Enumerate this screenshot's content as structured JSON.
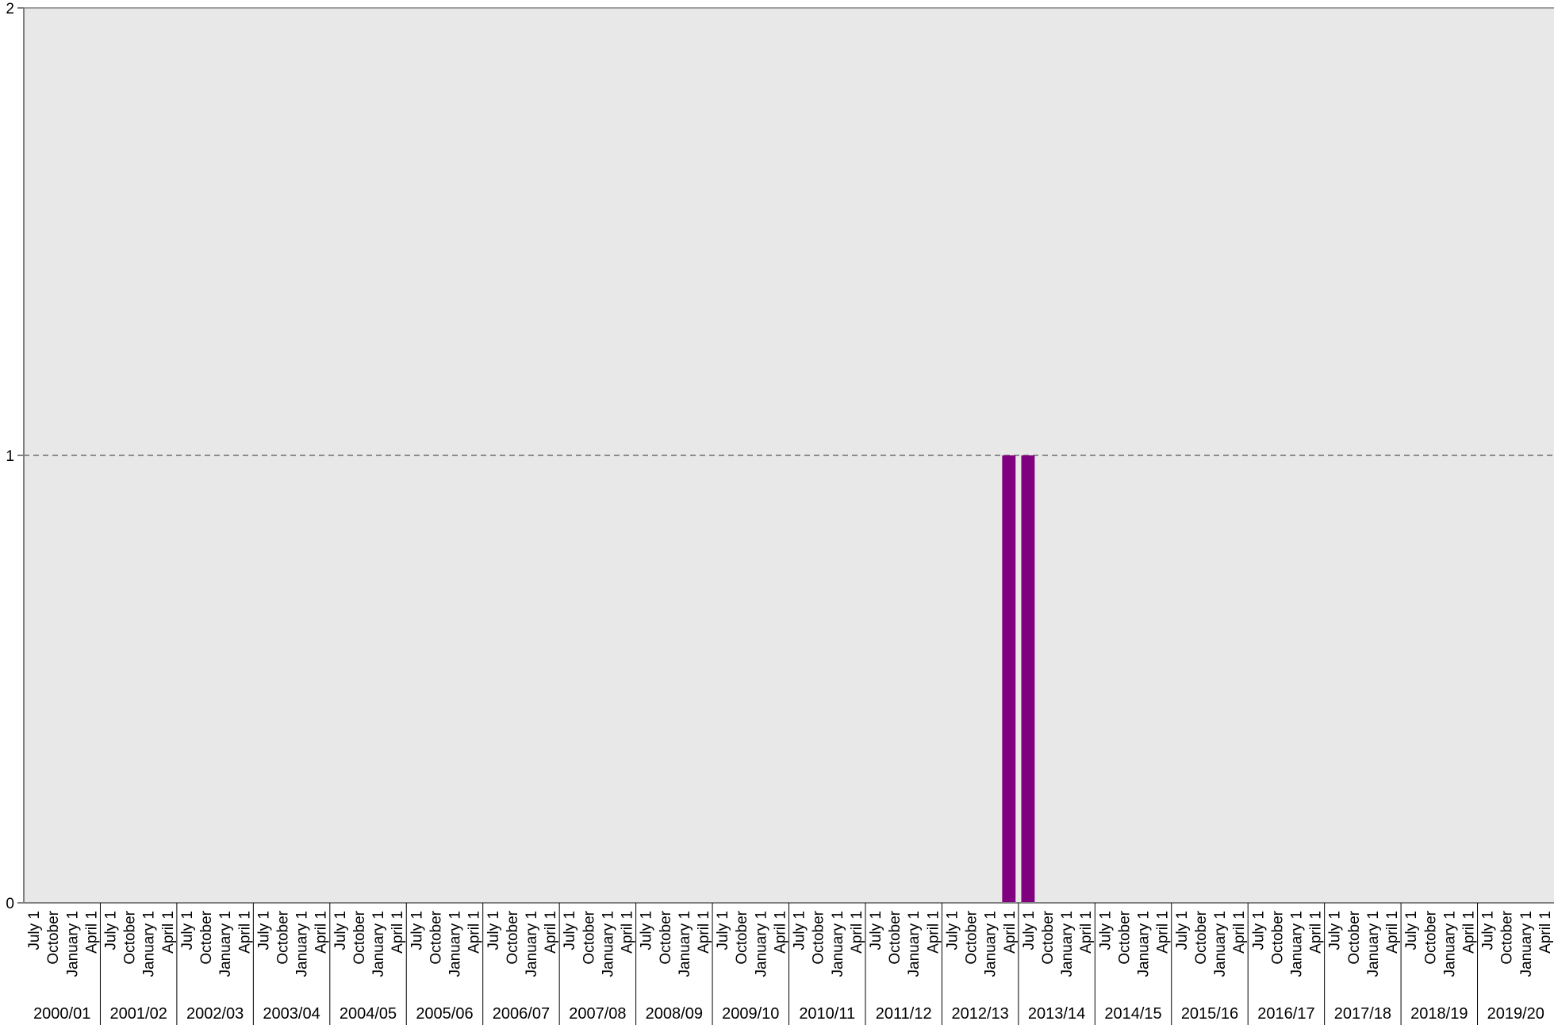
{
  "chart_data": {
    "type": "bar",
    "title": "",
    "xlabel": "",
    "ylabel": "",
    "ylim": [
      0,
      2
    ],
    "yticks": [
      "0",
      "1",
      "2"
    ],
    "grid": "horizontal dashed at 1",
    "legend": "none",
    "colors": {
      "plot_bg": "#e8e8e8",
      "bar": "#800080",
      "axis": "#808080",
      "grid": "#555555"
    },
    "quarter_labels": [
      "July 1",
      "October",
      "January 1",
      "April 1"
    ],
    "years": [
      "2000/01",
      "2001/02",
      "2002/03",
      "2003/04",
      "2004/05",
      "2005/06",
      "2006/07",
      "2007/08",
      "2008/09",
      "2009/10",
      "2010/11",
      "2011/12",
      "2012/13",
      "2013/14",
      "2014/15",
      "2015/16",
      "2016/17",
      "2017/18",
      "2018/19",
      "2019/20"
    ],
    "values": [
      0,
      0,
      0,
      0,
      0,
      0,
      0,
      0,
      0,
      0,
      0,
      0,
      0,
      0,
      0,
      0,
      0,
      0,
      0,
      0,
      0,
      0,
      0,
      0,
      0,
      0,
      0,
      0,
      0,
      0,
      0,
      0,
      0,
      0,
      0,
      0,
      0,
      0,
      0,
      0,
      0,
      0,
      0,
      0,
      0,
      0,
      0,
      0,
      0,
      0,
      0,
      1,
      1,
      0,
      0,
      0,
      0,
      0,
      0,
      0,
      0,
      0,
      0,
      0,
      0,
      0,
      0,
      0,
      0,
      0,
      0,
      0,
      0,
      0,
      0,
      0
    ]
  }
}
